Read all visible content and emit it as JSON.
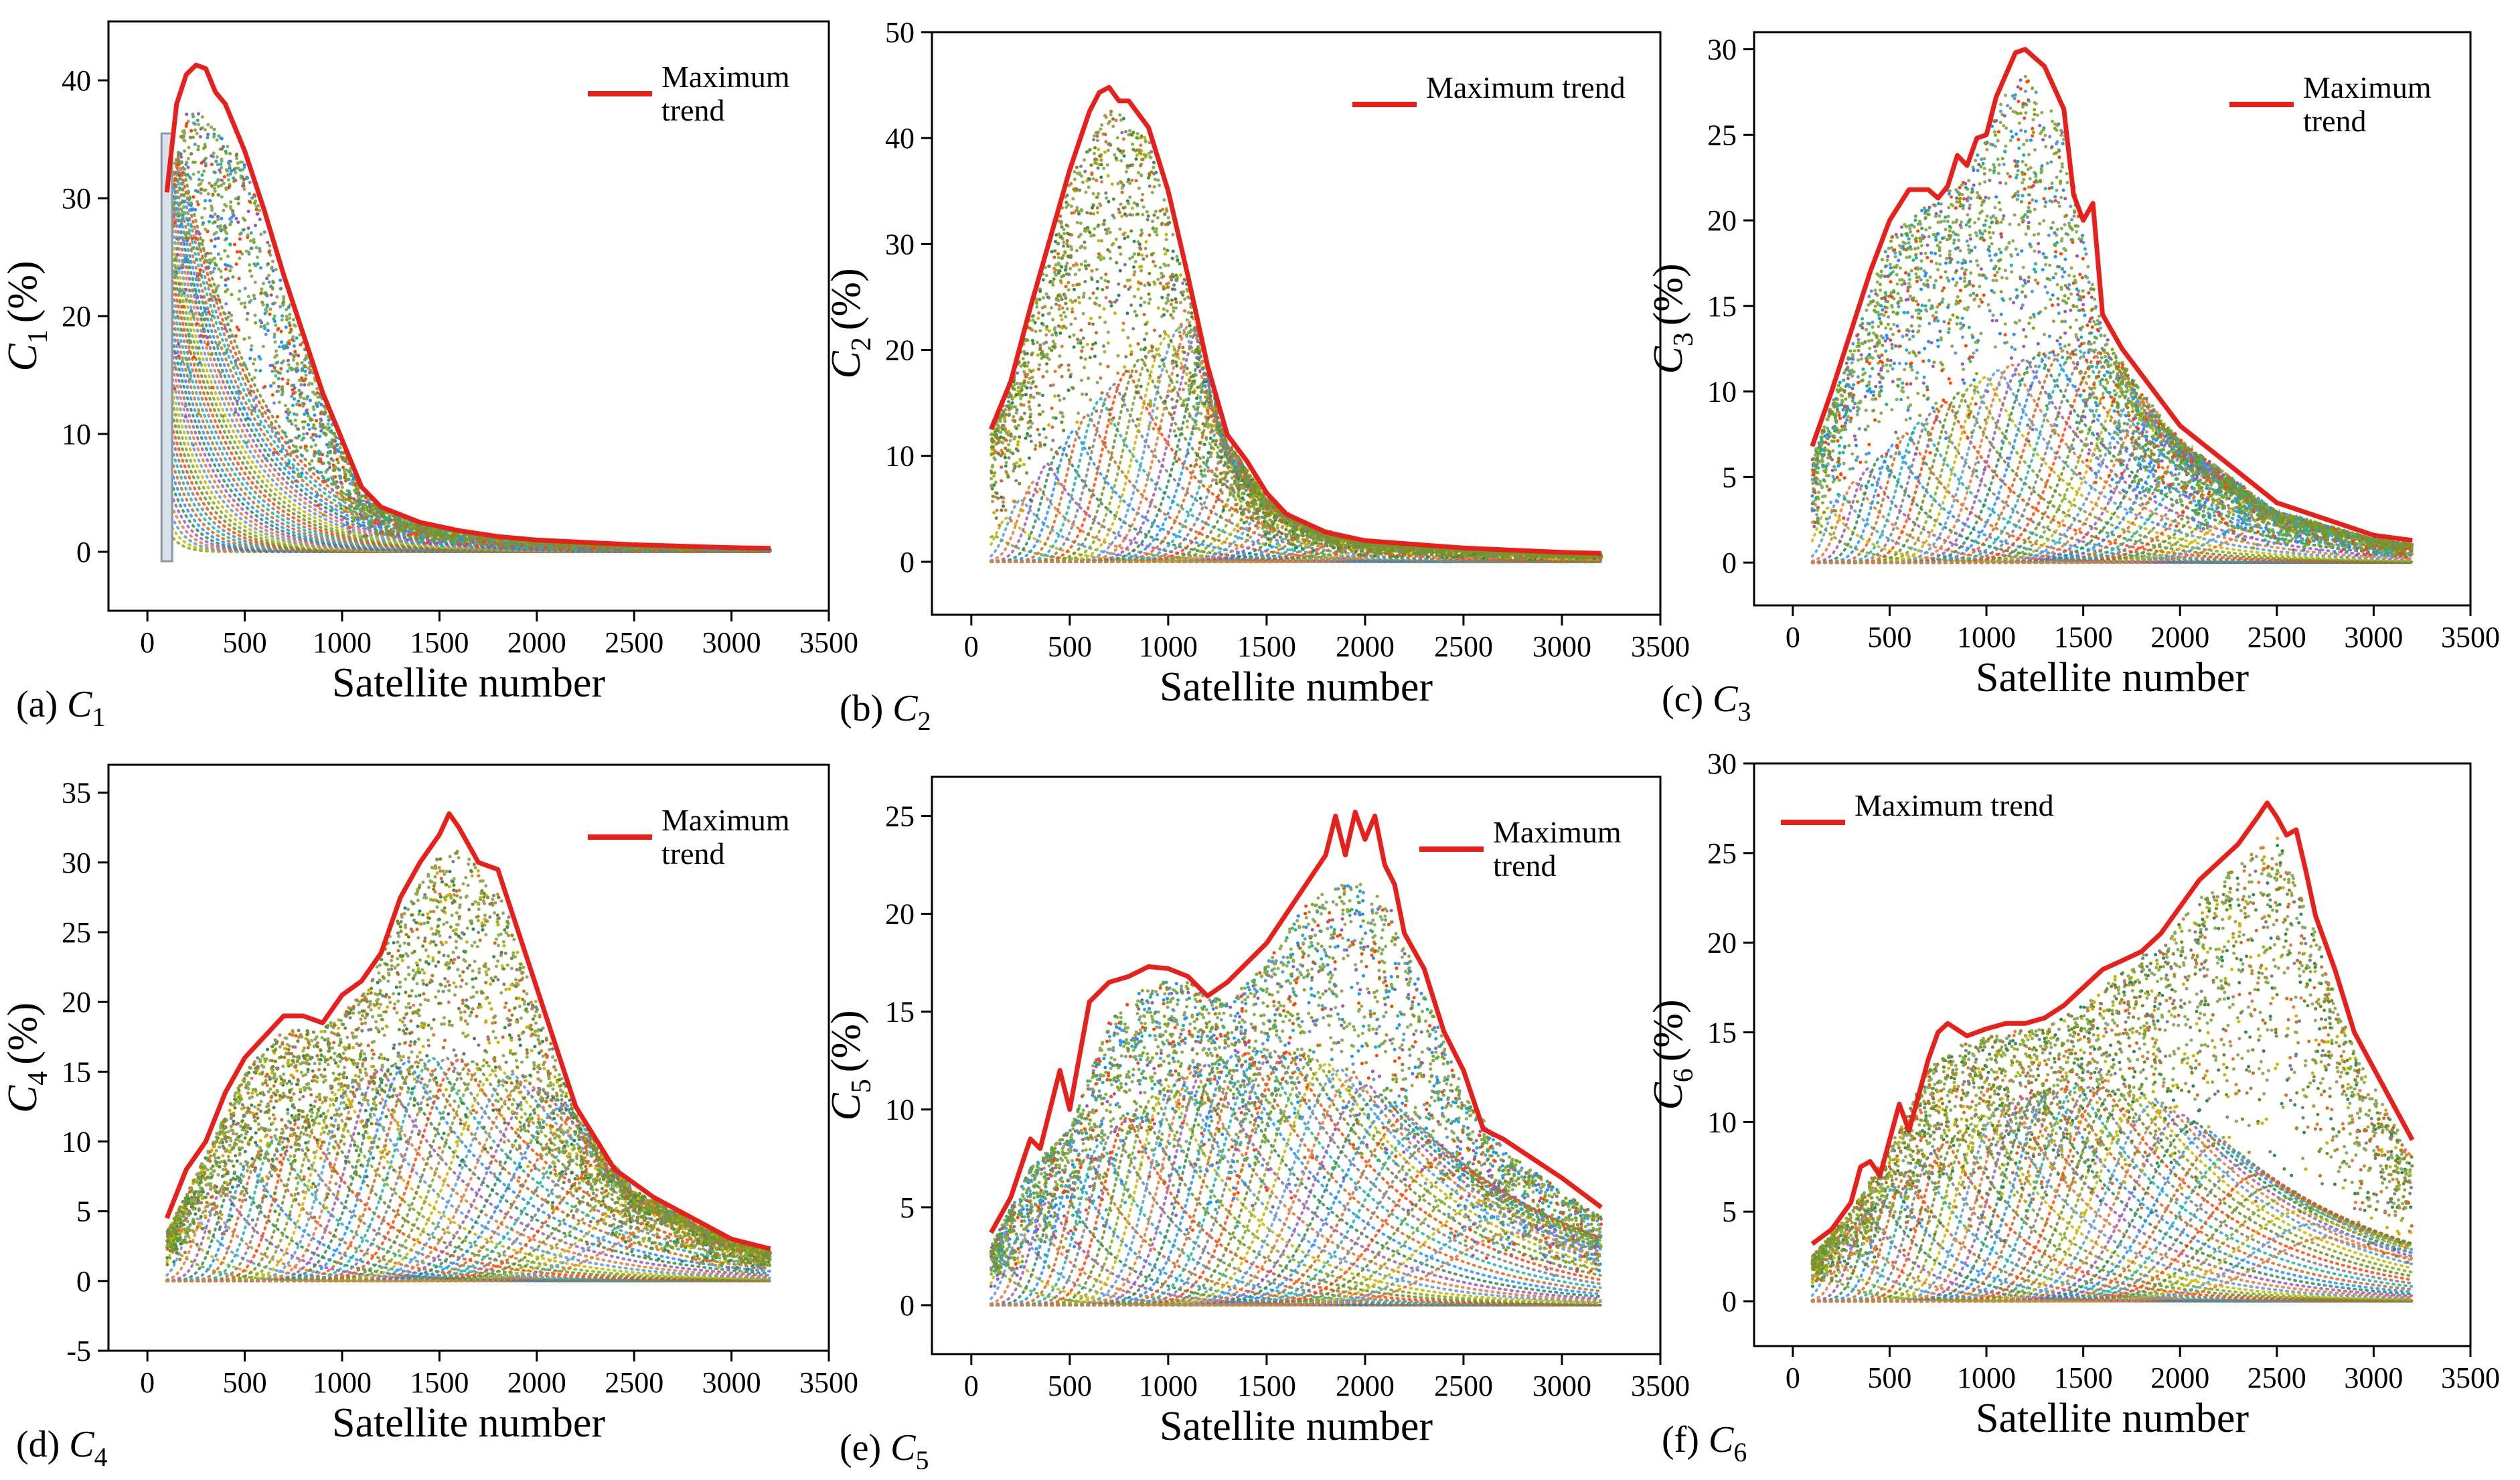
{
  "figure": {
    "panels": [
      "a",
      "b",
      "c",
      "d",
      "e",
      "f"
    ]
  },
  "colors": {
    "trend": "#e8201c",
    "frame": "#000000",
    "scatter_palette": [
      "#7fa81b",
      "#c9b600",
      "#5a9bd5",
      "#e07b39",
      "#9b59b6",
      "#2e8b57",
      "#1e90ff",
      "#d2691e",
      "#20b2aa",
      "#808080",
      "#ff4500",
      "#6b8e23"
    ]
  },
  "chart_data": [
    {
      "id": "a",
      "type": "scatter",
      "caption_letter": "(a)",
      "caption_var": "C",
      "caption_sub": "1",
      "ylabel_var": "C",
      "ylabel_sub": "1",
      "ylabel_unit": "(%)",
      "xlabel": "Satellite number",
      "xlim": [
        -200,
        3500
      ],
      "ylim": [
        -5,
        45
      ],
      "xticks": [
        0,
        500,
        1000,
        1500,
        2000,
        2500,
        3000,
        3500
      ],
      "yticks": [
        0,
        10,
        20,
        30,
        40
      ],
      "legend": {
        "label_line1": "Maximum",
        "label_line2": "trend",
        "position": "top-right"
      },
      "trend": {
        "name": "Maximum trend",
        "x": [
          100,
          150,
          200,
          250,
          300,
          350,
          400,
          500,
          600,
          700,
          800,
          900,
          1000,
          1100,
          1200,
          1400,
          1600,
          1800,
          2000,
          2500,
          3000,
          3200
        ],
        "y": [
          30.5,
          38,
          40.5,
          41.3,
          41,
          39,
          38,
          34,
          29,
          23.5,
          18.5,
          13.5,
          9.5,
          5.5,
          3.8,
          2.5,
          1.8,
          1.3,
          1.0,
          0.6,
          0.35,
          0.3
        ]
      },
      "envelope": {
        "x": [
          100,
          200,
          300,
          500,
          700,
          900,
          1100,
          1200,
          1400,
          1600,
          1800,
          2000,
          2500,
          3000,
          3200
        ],
        "y": [
          30,
          37.5,
          37,
          33,
          22.5,
          13,
          5.2,
          3.6,
          2.4,
          1.7,
          1.25,
          0.95,
          0.55,
          0.33,
          0.28
        ]
      },
      "curves": {
        "count": 36,
        "peak_first": 1500,
        "peak_last": 1500,
        "shape": "decay"
      }
    },
    {
      "id": "b",
      "type": "scatter",
      "caption_letter": "(b)",
      "caption_var": "C",
      "caption_sub": "2",
      "ylabel_var": "C",
      "ylabel_sub": "2",
      "ylabel_unit": "(%)",
      "xlabel": "Satellite number",
      "xlim": [
        -200,
        3500
      ],
      "ylim": [
        -5,
        50
      ],
      "xticks": [
        0,
        500,
        1000,
        1500,
        2000,
        2500,
        3000,
        3500
      ],
      "yticks": [
        0,
        10,
        20,
        30,
        40,
        50
      ],
      "legend": {
        "label_line1": "Maximum trend",
        "label_line2": "",
        "position": "top-right"
      },
      "trend": {
        "name": "Maximum trend",
        "x": [
          100,
          200,
          300,
          400,
          500,
          600,
          650,
          700,
          750,
          800,
          900,
          1000,
          1100,
          1200,
          1300,
          1400,
          1500,
          1600,
          1800,
          2000,
          2500,
          3000,
          3200
        ],
        "y": [
          12.5,
          17,
          24,
          30.5,
          37,
          42.5,
          44.3,
          44.8,
          43.5,
          43.5,
          41,
          35,
          27,
          18.5,
          12,
          9.5,
          6.5,
          4.5,
          2.8,
          2.0,
          1.3,
          0.9,
          0.8
        ]
      },
      "envelope": {
        "x": [
          100,
          300,
          500,
          700,
          900,
          1100,
          1300,
          1500,
          1700,
          2000,
          2500,
          3000,
          3200
        ],
        "y": [
          12,
          23,
          36,
          43,
          40,
          26,
          11.5,
          6,
          3.5,
          1.9,
          1.2,
          0.85,
          0.75
        ]
      },
      "curves": {
        "count": 40,
        "peak_first": 2.5,
        "peak_last": 25,
        "shape": "rise-decay"
      }
    },
    {
      "id": "c",
      "type": "scatter",
      "caption_letter": "(c)",
      "caption_var": "C",
      "caption_sub": "3",
      "ylabel_var": "C",
      "ylabel_sub": "3",
      "ylabel_unit": "(%)",
      "xlabel": "Satellite number",
      "xlim": [
        -200,
        3500
      ],
      "ylim": [
        -2.5,
        31
      ],
      "xticks": [
        0,
        500,
        1000,
        1500,
        2000,
        2500,
        3000,
        3500
      ],
      "yticks": [
        0,
        5,
        10,
        15,
        20,
        25,
        30
      ],
      "legend": {
        "label_line1": "Maximum",
        "label_line2": "trend",
        "position": "top-right"
      },
      "trend": {
        "name": "Maximum trend",
        "x": [
          100,
          200,
          300,
          400,
          500,
          600,
          700,
          750,
          800,
          850,
          900,
          950,
          1000,
          1050,
          1100,
          1150,
          1200,
          1300,
          1400,
          1450,
          1500,
          1550,
          1600,
          1700,
          2000,
          2500,
          3000,
          3200
        ],
        "y": [
          6.8,
          10,
          13.5,
          17,
          20,
          21.8,
          21.8,
          21.3,
          22,
          23.8,
          23.2,
          24.8,
          25,
          27.2,
          28.5,
          29.8,
          30,
          29,
          26.5,
          21.5,
          20,
          21,
          14.5,
          12.5,
          8,
          3.5,
          1.6,
          1.3
        ]
      },
      "envelope": {
        "x": [
          100,
          300,
          500,
          700,
          900,
          1100,
          1200,
          1400,
          1500,
          1600,
          1800,
          2000,
          2500,
          3000,
          3200
        ],
        "y": [
          6,
          12.5,
          19,
          21,
          22.5,
          27.5,
          28.5,
          25.5,
          19,
          13.5,
          10,
          7.2,
          3,
          1.4,
          1.1
        ]
      },
      "curves": {
        "count": 40,
        "peak_first": 2.5,
        "peak_last": 12.5,
        "shape": "rise-decay"
      }
    },
    {
      "id": "d",
      "type": "scatter",
      "caption_letter": "(d)",
      "caption_var": "C",
      "caption_sub": "4",
      "ylabel_var": "C",
      "ylabel_sub": "4",
      "ylabel_unit": "(%)",
      "xlabel": "Satellite number",
      "xlim": [
        -200,
        3500
      ],
      "ylim": [
        -5,
        37
      ],
      "xticks": [
        0,
        500,
        1000,
        1500,
        2000,
        2500,
        3000,
        3500
      ],
      "yticks": [
        -5,
        0,
        5,
        10,
        15,
        20,
        25,
        30,
        35
      ],
      "legend": {
        "label_line1": "Maximum",
        "label_line2": "trend",
        "position": "top-right"
      },
      "trend": {
        "name": "Maximum trend",
        "x": [
          100,
          200,
          300,
          400,
          500,
          600,
          700,
          800,
          900,
          1000,
          1100,
          1200,
          1300,
          1400,
          1500,
          1550,
          1600,
          1700,
          1800,
          2000,
          2200,
          2400,
          2600,
          3000,
          3200
        ],
        "y": [
          4.5,
          8,
          10,
          13.5,
          16,
          17.5,
          19,
          19,
          18.5,
          20.5,
          21.5,
          23.5,
          27.5,
          30,
          32,
          33.5,
          32.5,
          30,
          29.5,
          21,
          12.5,
          8,
          6,
          3,
          2.3
        ]
      },
      "envelope": {
        "x": [
          100,
          300,
          500,
          700,
          900,
          1100,
          1300,
          1500,
          1600,
          1800,
          2000,
          2200,
          2500,
          3000,
          3200
        ],
        "y": [
          3.5,
          9,
          15,
          18,
          18,
          20.5,
          26.5,
          30.5,
          31,
          28.5,
          20,
          12,
          6.5,
          2.8,
          2.1
        ]
      },
      "curves": {
        "count": 40,
        "peak_first": 2.5,
        "peak_last": 16,
        "shape": "rise-decay"
      }
    },
    {
      "id": "e",
      "type": "scatter",
      "caption_letter": "(e)",
      "caption_var": "C",
      "caption_sub": "5",
      "ylabel_var": "C",
      "ylabel_sub": "5",
      "ylabel_unit": "(%)",
      "xlabel": "Satellite number",
      "xlim": [
        -200,
        3500
      ],
      "ylim": [
        -2.5,
        27
      ],
      "xticks": [
        0,
        500,
        1000,
        1500,
        2000,
        2500,
        3000,
        3500
      ],
      "yticks": [
        0,
        5,
        10,
        15,
        20,
        25
      ],
      "legend": {
        "label_line1": "Maximum",
        "label_line2": "trend",
        "position": "top-right"
      },
      "trend": {
        "name": "Maximum trend",
        "x": [
          100,
          200,
          250,
          300,
          350,
          400,
          450,
          500,
          600,
          700,
          800,
          900,
          1000,
          1100,
          1200,
          1300,
          1400,
          1500,
          1600,
          1700,
          1800,
          1850,
          1900,
          1950,
          2000,
          2050,
          2100,
          2150,
          2200,
          2300,
          2400,
          2500,
          2600,
          2700,
          3000,
          3200
        ],
        "y": [
          3.7,
          5.5,
          7,
          8.5,
          8,
          10,
          12,
          10,
          15.5,
          16.5,
          16.8,
          17.3,
          17.2,
          16.8,
          15.8,
          16.5,
          17.5,
          18.5,
          20,
          21.5,
          23,
          25,
          23,
          25.2,
          23.8,
          25,
          22.5,
          21.5,
          19,
          17.2,
          14,
          12,
          9,
          8.5,
          6.5,
          5
        ]
      },
      "envelope": {
        "x": [
          100,
          300,
          500,
          700,
          900,
          1100,
          1300,
          1500,
          1700,
          1900,
          2100,
          2300,
          2500,
          2700,
          3000,
          3200
        ],
        "y": [
          3,
          7,
          9,
          14.5,
          16.5,
          16.5,
          15.5,
          17.5,
          20.5,
          22,
          21,
          16,
          11,
          8,
          5.8,
          4.5
        ]
      },
      "curves": {
        "count": 40,
        "peak_first": 2,
        "peak_last": 13,
        "shape": "rise-decay"
      }
    },
    {
      "id": "f",
      "type": "scatter",
      "caption_letter": "(f)",
      "caption_var": "C",
      "caption_sub": "6",
      "ylabel_var": "C",
      "ylabel_sub": "6",
      "ylabel_unit": "(%)",
      "xlabel": "Satellite number",
      "xlim": [
        -200,
        3500
      ],
      "ylim": [
        -2.5,
        30
      ],
      "xticks": [
        0,
        500,
        1000,
        1500,
        2000,
        2500,
        3000,
        3500
      ],
      "yticks": [
        0,
        5,
        10,
        15,
        20,
        25,
        30
      ],
      "legend": {
        "label_line1": "Maximum trend",
        "label_line2": "",
        "position": "top-left"
      },
      "trend": {
        "name": "Maximum trend",
        "x": [
          100,
          200,
          300,
          350,
          400,
          450,
          500,
          550,
          600,
          650,
          700,
          750,
          800,
          900,
          1000,
          1100,
          1200,
          1300,
          1400,
          1500,
          1600,
          1700,
          1800,
          1900,
          2000,
          2100,
          2200,
          2300,
          2400,
          2450,
          2500,
          2550,
          2600,
          2650,
          2700,
          2800,
          2900,
          3000,
          3100,
          3200
        ],
        "y": [
          3.2,
          4,
          5.5,
          7.5,
          7.8,
          7,
          9,
          11,
          9.5,
          11.5,
          13.5,
          15,
          15.5,
          14.8,
          15.2,
          15.5,
          15.5,
          15.8,
          16.5,
          17.5,
          18.5,
          19,
          19.5,
          20.5,
          22,
          23.5,
          24.5,
          25.5,
          27,
          27.8,
          27,
          26,
          26.3,
          24,
          21.5,
          18.5,
          15,
          13,
          11,
          9
        ]
      },
      "envelope": {
        "x": [
          100,
          300,
          500,
          700,
          900,
          1100,
          1300,
          1500,
          1700,
          1900,
          2100,
          2300,
          2500,
          2700,
          2900,
          3200
        ],
        "y": [
          2.5,
          5,
          8.5,
          13,
          14.5,
          15,
          15.3,
          16.5,
          18.5,
          20,
          22.5,
          24.5,
          26,
          20.5,
          14,
          8
        ]
      },
      "curves": {
        "count": 40,
        "peak_first": 2,
        "peak_last": 12,
        "shape": "rise-decay"
      }
    }
  ]
}
